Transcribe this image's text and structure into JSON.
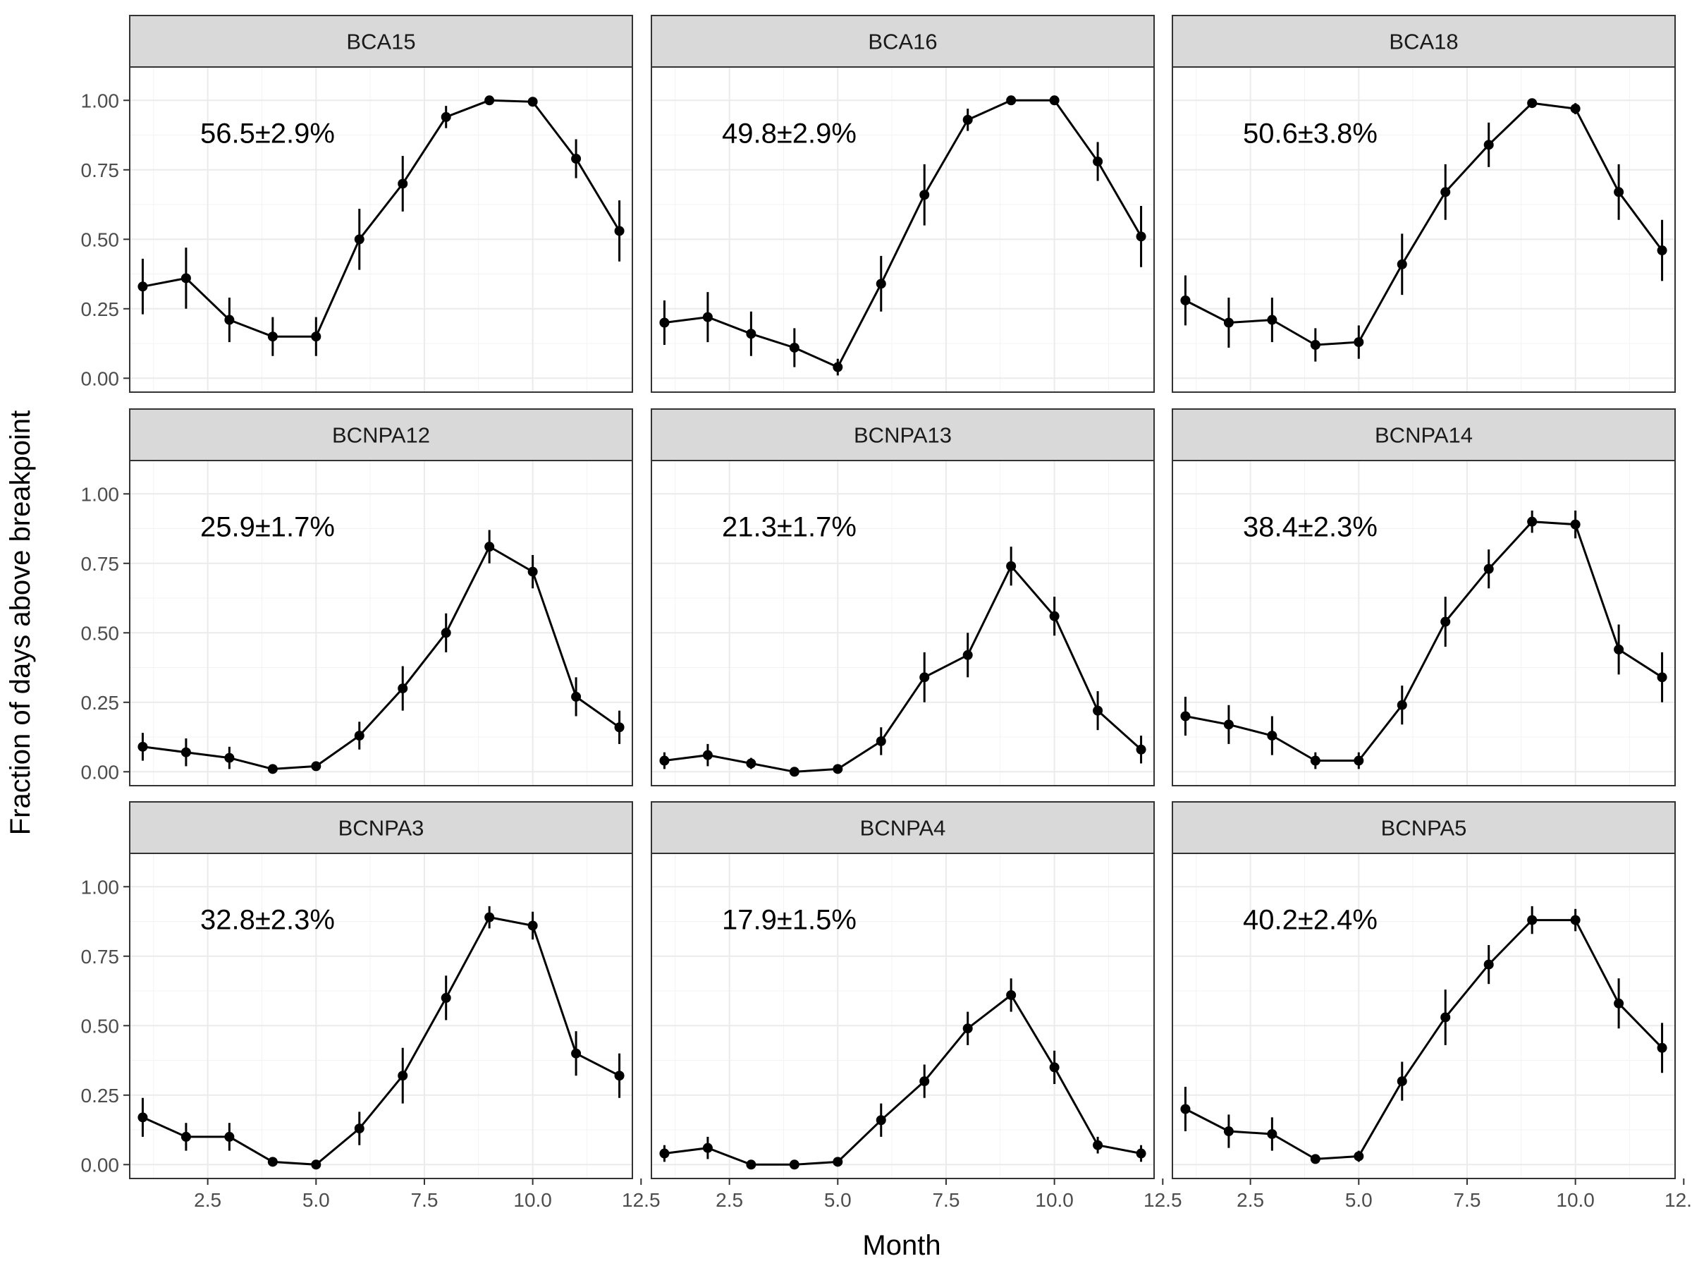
{
  "chart_data": {
    "type": "line",
    "layout": "facet_grid_3x3",
    "xlabel": "Month",
    "ylabel": "Fraction of days above breakpoint",
    "xlim": [
      0.7,
      12.3
    ],
    "ylim": [
      -0.05,
      1.12
    ],
    "x_ticks": [
      2.5,
      5.0,
      7.5,
      10.0,
      12.5
    ],
    "x_tick_labels": [
      "2.5",
      "5.0",
      "7.5",
      "10.0",
      "12.5"
    ],
    "y_ticks": [
      0,
      0.25,
      0.5,
      0.75,
      1.0
    ],
    "y_tick_labels": [
      "0.00",
      "0.25",
      "0.50",
      "0.75",
      "1.00"
    ],
    "grid": true,
    "x": [
      1,
      2,
      3,
      4,
      5,
      6,
      7,
      8,
      9,
      10,
      11,
      12
    ],
    "panels": [
      {
        "name": "BCA15",
        "annotation": "56.5±2.9%",
        "values": [
          0.33,
          0.36,
          0.21,
          0.15,
          0.15,
          0.5,
          0.7,
          0.94,
          1.0,
          0.995,
          0.79,
          0.53
        ],
        "err": [
          0.1,
          0.11,
          0.08,
          0.07,
          0.07,
          0.11,
          0.1,
          0.04,
          0.005,
          0.01,
          0.07,
          0.11
        ]
      },
      {
        "name": "BCA16",
        "annotation": "49.8±2.9%",
        "values": [
          0.2,
          0.22,
          0.16,
          0.11,
          0.04,
          0.34,
          0.66,
          0.93,
          1.0,
          1.0,
          0.78,
          0.51
        ],
        "err": [
          0.08,
          0.09,
          0.08,
          0.07,
          0.03,
          0.1,
          0.11,
          0.04,
          0.005,
          0.005,
          0.07,
          0.11
        ]
      },
      {
        "name": "BCA18",
        "annotation": "50.6±3.8%",
        "values": [
          0.28,
          0.2,
          0.21,
          0.12,
          0.13,
          0.41,
          0.67,
          0.84,
          0.99,
          0.97,
          0.67,
          0.46
        ],
        "err": [
          0.09,
          0.09,
          0.08,
          0.06,
          0.06,
          0.11,
          0.1,
          0.08,
          0.01,
          0.02,
          0.1,
          0.11
        ]
      },
      {
        "name": "BCNPA12",
        "annotation": "25.9±1.7%",
        "values": [
          0.09,
          0.07,
          0.05,
          0.01,
          0.02,
          0.13,
          0.3,
          0.5,
          0.81,
          0.72,
          0.27,
          0.16
        ],
        "err": [
          0.05,
          0.05,
          0.04,
          0.01,
          0.01,
          0.05,
          0.08,
          0.07,
          0.06,
          0.06,
          0.07,
          0.06
        ]
      },
      {
        "name": "BCNPA13",
        "annotation": "21.3±1.7%",
        "values": [
          0.04,
          0.06,
          0.03,
          0.0,
          0.01,
          0.11,
          0.34,
          0.42,
          0.74,
          0.56,
          0.22,
          0.08
        ],
        "err": [
          0.03,
          0.04,
          0.02,
          0.005,
          0.01,
          0.05,
          0.09,
          0.08,
          0.07,
          0.07,
          0.07,
          0.05
        ]
      },
      {
        "name": "BCNPA14",
        "annotation": "38.4±2.3%",
        "values": [
          0.2,
          0.17,
          0.13,
          0.04,
          0.04,
          0.24,
          0.54,
          0.73,
          0.9,
          0.89,
          0.44,
          0.34
        ],
        "err": [
          0.07,
          0.07,
          0.07,
          0.03,
          0.03,
          0.07,
          0.09,
          0.07,
          0.04,
          0.05,
          0.09,
          0.09
        ]
      },
      {
        "name": "BCNPA3",
        "annotation": "32.8±2.3%",
        "values": [
          0.17,
          0.1,
          0.1,
          0.01,
          0.0,
          0.13,
          0.32,
          0.6,
          0.89,
          0.86,
          0.4,
          0.32
        ],
        "err": [
          0.07,
          0.05,
          0.05,
          0.01,
          0.005,
          0.06,
          0.1,
          0.08,
          0.04,
          0.05,
          0.08,
          0.08
        ]
      },
      {
        "name": "BCNPA4",
        "annotation": "17.9±1.5%",
        "values": [
          0.04,
          0.06,
          0.0,
          0.0,
          0.01,
          0.16,
          0.3,
          0.49,
          0.61,
          0.35,
          0.07,
          0.04
        ],
        "err": [
          0.03,
          0.04,
          0.005,
          0.005,
          0.01,
          0.06,
          0.06,
          0.06,
          0.06,
          0.06,
          0.03,
          0.03
        ]
      },
      {
        "name": "BCNPA5",
        "annotation": "40.2±2.4%",
        "values": [
          0.2,
          0.12,
          0.11,
          0.02,
          0.03,
          0.3,
          0.53,
          0.72,
          0.88,
          0.88,
          0.58,
          0.42
        ],
        "err": [
          0.08,
          0.06,
          0.06,
          0.01,
          0.02,
          0.07,
          0.1,
          0.07,
          0.05,
          0.04,
          0.09,
          0.09
        ]
      }
    ]
  }
}
